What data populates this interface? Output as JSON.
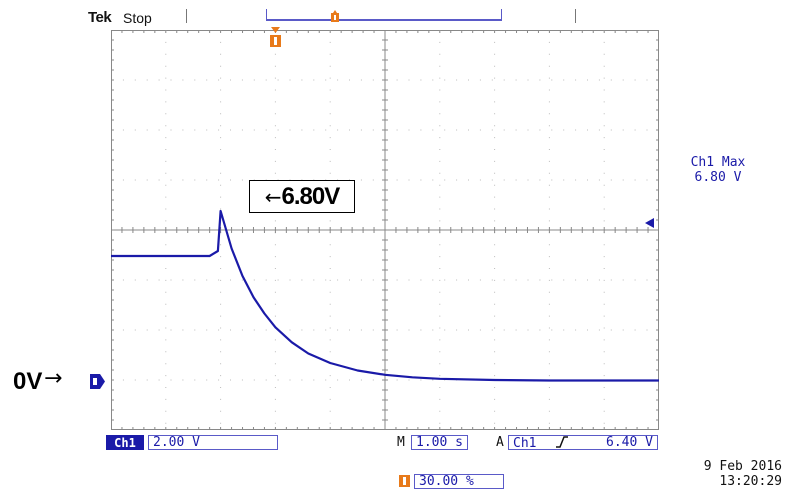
{
  "header": {
    "brand": "Tek",
    "acq_state": "Stop"
  },
  "measurement": {
    "label": "Ch1 Max",
    "value": "6.80 V"
  },
  "annotations": {
    "zero_label": "0V",
    "zero_arrow": "→",
    "peak_arrow": "←",
    "peak_text": "6.80V"
  },
  "status": {
    "channel": "Ch1",
    "vertical_scale": "2.00 V",
    "timebase_prefix": "M",
    "timebase": "1.00 s",
    "trigger_prefix": "A",
    "trigger_source": "Ch1",
    "trigger_slope_icon": "rising-edge-icon",
    "trigger_level": "6.40 V",
    "trigger_position": "30.00 %",
    "date": "9 Feb  2016",
    "time": "13:20:29"
  },
  "colors": {
    "trace": "#1a1aa8",
    "trigger_marker": "#e87a1a",
    "grid": "#888888"
  },
  "chart_data": {
    "type": "line",
    "xlabel": "",
    "ylabel": "",
    "x_unit": "s",
    "y_unit": "V",
    "xlim": [
      -2.0,
      8.0
    ],
    "ylim": [
      -0.5,
      7.0
    ],
    "grid": true,
    "series": [
      {
        "x": [
          -2.0,
          -1.5,
          -1.0,
          -0.5,
          -0.2,
          -0.05,
          0.0,
          0.2,
          0.4,
          0.6,
          0.8,
          1.0,
          1.3,
          1.6,
          2.0,
          2.5,
          3.0,
          3.5,
          4.0,
          5.0,
          6.0,
          7.0,
          8.0
        ],
        "y": [
          5.0,
          5.0,
          5.0,
          5.0,
          5.0,
          5.2,
          6.8,
          5.3,
          4.2,
          3.35,
          2.7,
          2.15,
          1.55,
          1.1,
          0.72,
          0.42,
          0.25,
          0.15,
          0.09,
          0.04,
          0.02,
          0.02,
          0.02
        ]
      }
    ]
  }
}
